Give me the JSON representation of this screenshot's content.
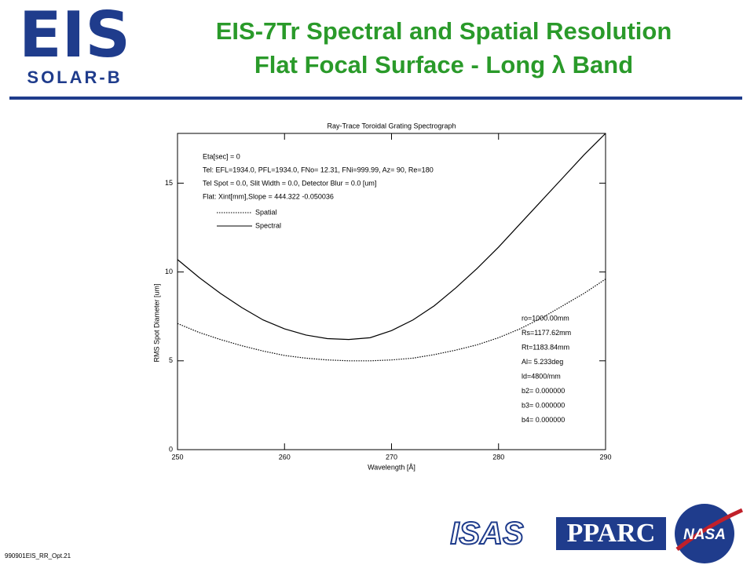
{
  "slide": {
    "logo": "EIS",
    "logo_sub": "SOLAR-B",
    "title_line1": "EIS-7Tr Spectral and Spatial Resolution",
    "title_line2": "Flat Focal Surface - Long λ Band",
    "footer": "990901EIS_RR_Opt.21",
    "partners": [
      "ISAS",
      "PPARC",
      "NASA"
    ]
  },
  "chart_data": {
    "type": "line",
    "title": "Ray-Trace Toroidal Grating Spectrograph",
    "x_label": "Wavelength [Å]",
    "y_label": "RMS Spot Diameter [um]",
    "x": [
      250,
      252,
      254,
      256,
      258,
      260,
      262,
      264,
      266,
      268,
      270,
      272,
      274,
      276,
      278,
      280,
      282,
      284,
      286,
      288,
      290
    ],
    "series": [
      {
        "name": "Spatial",
        "color": "#000000",
        "style": "dotted",
        "values": [
          7.1,
          6.6,
          6.2,
          5.85,
          5.55,
          5.3,
          5.15,
          5.05,
          5.0,
          5.0,
          5.05,
          5.15,
          5.35,
          5.6,
          5.9,
          6.3,
          6.8,
          7.4,
          8.1,
          8.8,
          9.6
        ]
      },
      {
        "name": "Spectral",
        "color": "#000000",
        "style": "solid",
        "values": [
          10.7,
          9.7,
          8.8,
          8.0,
          7.3,
          6.8,
          6.45,
          6.25,
          6.2,
          6.3,
          6.7,
          7.3,
          8.1,
          9.1,
          10.2,
          11.4,
          12.7,
          14.0,
          15.3,
          16.6,
          17.8
        ]
      }
    ],
    "xlim": [
      250,
      290
    ],
    "xticks": [
      250,
      260,
      270,
      280,
      290
    ],
    "ylim": [
      0,
      17.8
    ],
    "yticks": [
      0,
      5,
      10,
      15
    ],
    "legend": "upper left",
    "annotations": [
      "Eta[sec] = 0",
      "Tel: EFL=1934.0, PFL=1934.0, FNo= 12.31, FNi=999.99, Az= 90, Re=180",
      "Tel Spot = 0.0, Slit Width = 0.0, Detector Blur = 0.0 [um]",
      "Flat: Xint[mm],Slope = 444.322 -0.050036"
    ],
    "notes": [
      "ro=1000.00mm",
      "Rs=1177.62mm",
      "Rt=1183.84mm",
      "Al= 5.233deg",
      "ld=4800/mm",
      "b2= 0.000000",
      "b3= 0.000000",
      "b4= 0.000000"
    ]
  }
}
